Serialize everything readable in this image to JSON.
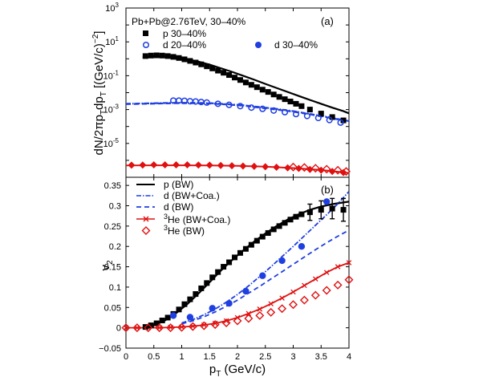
{
  "chart_data": [
    {
      "type": "scatter",
      "panel_label": "(a)",
      "title": "Pb+Pb@2.76TeV, 30–40%",
      "ylabel": "dN/2πp_T dp_T [(GeV/c)^-2]",
      "ylabel_parts": {
        "main": "dN/2πp",
        "sub1": "T",
        "mid": "dp",
        "sub2": "T",
        "bracket": " [(GeV/c)",
        "sup": "−2",
        "close": "]"
      },
      "yscale": "log",
      "xlim": [
        0,
        4
      ],
      "ylim_exp": [
        -7,
        3
      ],
      "ytick_exps": [
        -5,
        -3,
        -1,
        1,
        3
      ],
      "ytick_labels": [
        {
          "base": "10",
          "exp": "-5"
        },
        {
          "base": "10",
          "exp": "-3"
        },
        {
          "base": "10",
          "exp": "-1"
        },
        {
          "base": "10",
          "exp": "1"
        },
        {
          "base": "10",
          "exp": "3"
        }
      ],
      "legend": [
        {
          "marker": "square",
          "color": "#000000",
          "label": "p   30–40%"
        },
        {
          "marker": "open-circle",
          "color": "#1f3fe0",
          "label": "d   20–40%"
        },
        {
          "marker": "filled-circle",
          "color": "#1f3fe0",
          "label": "d   30–40%"
        }
      ],
      "series": [
        {
          "name": "p 30–40% (data)",
          "marker": "square",
          "color": "#000000",
          "x": [
            0.35,
            0.45,
            0.55,
            0.65,
            0.75,
            0.85,
            0.95,
            1.05,
            1.15,
            1.25,
            1.35,
            1.45,
            1.55,
            1.65,
            1.75,
            1.85,
            1.95,
            2.05,
            2.15,
            2.25,
            2.35,
            2.45,
            2.55,
            2.65,
            2.75,
            2.85,
            2.95,
            3.05,
            3.15,
            3.3,
            3.5,
            3.7,
            3.9
          ],
          "y": [
            1.45,
            1.55,
            1.6,
            1.55,
            1.45,
            1.3,
            1.12,
            0.93,
            0.75,
            0.6,
            0.47,
            0.36,
            0.27,
            0.2,
            0.15,
            0.11,
            0.078,
            0.056,
            0.04,
            0.029,
            0.021,
            0.015,
            0.011,
            0.0078,
            0.0056,
            0.0041,
            0.003,
            0.0022,
            0.0016,
            0.001,
            0.00058,
            0.00036,
            0.00023
          ]
        },
        {
          "name": "p (BW) fit",
          "line": "solid",
          "color": "#000000",
          "x": [
            0.3,
            0.5,
            0.7,
            0.9,
            1.1,
            1.3,
            1.5,
            1.7,
            1.9,
            2.1,
            2.3,
            2.5,
            2.7,
            2.9,
            3.1,
            3.3,
            3.5,
            3.7,
            3.9,
            4.0
          ],
          "y": [
            1.2,
            1.45,
            1.4,
            1.2,
            0.95,
            0.68,
            0.45,
            0.28,
            0.17,
            0.1,
            0.058,
            0.033,
            0.019,
            0.011,
            0.0063,
            0.0037,
            0.0022,
            0.0013,
            0.0008,
            0.0006
          ]
        },
        {
          "name": "d 20–40% (data)",
          "marker": "open-circle",
          "color": "#1f3fe0",
          "x": [
            0.85,
            0.95,
            1.05,
            1.15,
            1.25,
            1.35,
            1.45,
            1.65,
            1.85,
            2.05,
            2.25,
            2.45,
            2.65,
            2.85,
            3.05,
            3.25,
            3.45,
            3.65,
            3.85
          ],
          "y": [
            0.0034,
            0.0034,
            0.0033,
            0.0031,
            0.003,
            0.0028,
            0.0026,
            0.0022,
            0.0019,
            0.0016,
            0.0013,
            0.0011,
            0.00088,
            0.0007,
            0.00054,
            0.00042,
            0.00032,
            0.00024,
            0.00017
          ]
        },
        {
          "name": "d (BW+Coa.)",
          "line": "dash-dot",
          "color": "#1f3fe0",
          "x": [
            0,
            0.3,
            0.6,
            0.9,
            1.2,
            1.5,
            1.8,
            2.1,
            2.4,
            2.7,
            3.0,
            3.3,
            3.6,
            3.9,
            4.0
          ],
          "y": [
            0.0022,
            0.0023,
            0.0024,
            0.0025,
            0.0025,
            0.0024,
            0.0021,
            0.0018,
            0.0014,
            0.0011,
            0.0008,
            0.00055,
            0.00037,
            0.00024,
            0.00021
          ]
        },
        {
          "name": "d (BW)",
          "line": "dashed",
          "color": "#1f3fe0",
          "x": [
            0,
            0.3,
            0.6,
            0.9,
            1.2,
            1.5,
            1.8,
            2.1,
            2.4,
            2.7,
            3.0,
            3.3,
            3.6,
            3.9,
            4.0
          ],
          "y": [
            0.0021,
            0.0022,
            0.0023,
            0.0024,
            0.0024,
            0.0023,
            0.002,
            0.0017,
            0.0013,
            0.001,
            0.00075,
            0.00052,
            0.00035,
            0.00023,
            0.0002
          ]
        },
        {
          "name": "3He (data)",
          "marker": "open-diamond",
          "color": "#e01010",
          "x": [
            3.0,
            3.2,
            3.4,
            3.6,
            3.8,
            3.95
          ],
          "y": [
            4e-07,
            3.8e-07,
            3.4e-07,
            3e-07,
            2.6e-07,
            2.2e-07
          ]
        },
        {
          "name": "3He (BW+Coa.) points",
          "marker": "filled-diamond",
          "color": "#e01010",
          "x": [
            0.1,
            0.3,
            0.5,
            0.7,
            0.9,
            1.1,
            1.3,
            1.5,
            1.7,
            1.9,
            2.1,
            2.3,
            2.5,
            2.7,
            2.9,
            3.1,
            3.3,
            3.5,
            3.7,
            3.9
          ],
          "y": [
            5.2e-07,
            5.3e-07,
            5.4e-07,
            5.4e-07,
            5.4e-07,
            5.4e-07,
            5.3e-07,
            5.2e-07,
            5e-07,
            4.8e-07,
            4.6e-07,
            4.4e-07,
            4.2e-07,
            3.9e-07,
            3.6e-07,
            3.3e-07,
            2.9e-07,
            2.6e-07,
            2.2e-07,
            1.9e-07
          ]
        },
        {
          "name": "3He (BW)",
          "line": "solid",
          "color": "#e01010",
          "x": [
            0,
            0.5,
            1.0,
            1.5,
            2.0,
            2.5,
            3.0,
            3.5,
            4.0
          ],
          "y": [
            5e-07,
            5.1e-07,
            5.1e-07,
            5e-07,
            4.7e-07,
            4.2e-07,
            3.5e-07,
            2.7e-07,
            1.8e-07
          ]
        }
      ]
    },
    {
      "type": "line",
      "panel_label": "(b)",
      "xlabel": "p_T (GeV/c)",
      "xlabel_parts": {
        "main": "p",
        "sub": "T",
        "rest": " (GeV/c)"
      },
      "ylabel": "v_2",
      "ylabel_parts": {
        "main": "v",
        "sub": "2"
      },
      "xlim": [
        0,
        4
      ],
      "ylim": [
        -0.05,
        0.37
      ],
      "xticks": [
        0,
        0.5,
        1,
        1.5,
        2,
        2.5,
        3,
        3.5,
        4
      ],
      "xtick_labels": [
        "0",
        "0.5",
        "1",
        "1.5",
        "2",
        "2.5",
        "3",
        "3.5",
        "4"
      ],
      "yticks": [
        -0.05,
        0,
        0.05,
        0.1,
        0.15,
        0.2,
        0.25,
        0.3,
        0.35
      ],
      "ytick_labels": [
        "−0.05",
        "0",
        "0.05",
        "0.1",
        "0.15",
        "0.2",
        "0.25",
        "0.3",
        "0.35"
      ],
      "legend": [
        {
          "style": "solid",
          "color": "#000000",
          "pre": "",
          "sup": "",
          "label": "p (BW)"
        },
        {
          "style": "dash-dot",
          "color": "#1f3fe0",
          "pre": "",
          "sup": "",
          "label": "d (BW+Coa.)"
        },
        {
          "style": "dashed",
          "color": "#1f3fe0",
          "pre": "",
          "sup": "",
          "label": "d (BW)"
        },
        {
          "style": "solid-x",
          "color": "#e01010",
          "pre": "",
          "sup": "3",
          "label": "He (BW+Coa.)"
        },
        {
          "style": "diamond",
          "color": "#e01010",
          "pre": "",
          "sup": "3",
          "label": "He (BW)"
        }
      ],
      "series": [
        {
          "name": "p v2 (data)",
          "marker": "square",
          "color": "#000000",
          "x": [
            0.35,
            0.45,
            0.55,
            0.65,
            0.75,
            0.85,
            0.95,
            1.05,
            1.15,
            1.25,
            1.35,
            1.45,
            1.55,
            1.65,
            1.75,
            1.85,
            1.95,
            2.05,
            2.15,
            2.25,
            2.35,
            2.45,
            2.55,
            2.65,
            2.75,
            2.85,
            2.95,
            3.05,
            3.15,
            3.3,
            3.5,
            3.7,
            3.9
          ],
          "y": [
            0.002,
            0.006,
            0.011,
            0.018,
            0.025,
            0.034,
            0.045,
            0.058,
            0.07,
            0.083,
            0.097,
            0.11,
            0.124,
            0.137,
            0.15,
            0.161,
            0.173,
            0.184,
            0.194,
            0.204,
            0.214,
            0.224,
            0.233,
            0.242,
            0.25,
            0.258,
            0.266,
            0.273,
            0.279,
            0.284,
            0.29,
            0.293,
            0.29
          ],
          "err": [
            0,
            0,
            0,
            0,
            0,
            0,
            0,
            0,
            0,
            0,
            0,
            0,
            0,
            0,
            0,
            0,
            0,
            0,
            0,
            0,
            0,
            0,
            0,
            0,
            0,
            0,
            0,
            0,
            0,
            0.02,
            0.022,
            0.025,
            0.028
          ]
        },
        {
          "name": "p (BW)",
          "line": "solid",
          "color": "#000000",
          "x": [
            0.3,
            0.5,
            0.7,
            0.9,
            1.1,
            1.3,
            1.5,
            1.7,
            1.9,
            2.1,
            2.3,
            2.5,
            2.7,
            2.9,
            3.1,
            3.3,
            3.5,
            3.7,
            3.9,
            4.0
          ],
          "y": [
            0.0,
            0.006,
            0.018,
            0.036,
            0.058,
            0.084,
            0.112,
            0.14,
            0.166,
            0.19,
            0.212,
            0.232,
            0.25,
            0.266,
            0.279,
            0.29,
            0.298,
            0.304,
            0.308,
            0.31
          ]
        },
        {
          "name": "d v2 (data)",
          "marker": "filled-circle",
          "color": "#1f3fe0",
          "x": [
            0.85,
            1.15,
            1.55,
            1.85,
            2.15,
            2.45,
            2.8,
            3.15,
            3.6
          ],
          "y": [
            0.03,
            0.026,
            0.048,
            0.06,
            0.09,
            0.128,
            0.165,
            0.2,
            0.31
          ]
        },
        {
          "name": "d (BW+Coa.)",
          "line": "dash-dot",
          "color": "#1f3fe0",
          "x": [
            1.0,
            1.2,
            1.4,
            1.6,
            1.8,
            2.0,
            2.2,
            2.4,
            2.6,
            2.8,
            3.0,
            3.2,
            3.4,
            3.6,
            3.8,
            4.0
          ],
          "y": [
            0.012,
            0.02,
            0.032,
            0.046,
            0.063,
            0.082,
            0.103,
            0.126,
            0.15,
            0.175,
            0.2,
            0.226,
            0.252,
            0.278,
            0.305,
            0.335
          ]
        },
        {
          "name": "d (BW)",
          "line": "dashed",
          "color": "#1f3fe0",
          "x": [
            1.0,
            1.2,
            1.4,
            1.6,
            1.8,
            2.0,
            2.2,
            2.4,
            2.6,
            2.8,
            3.0,
            3.2,
            3.4,
            3.6,
            3.8,
            4.0
          ],
          "y": [
            0.01,
            0.017,
            0.027,
            0.039,
            0.053,
            0.068,
            0.085,
            0.102,
            0.12,
            0.138,
            0.156,
            0.174,
            0.192,
            0.209,
            0.225,
            0.24
          ]
        },
        {
          "name": "3He (BW+Coa.)",
          "line": "solid-x",
          "color": "#e01010",
          "x": [
            0.0,
            0.2,
            0.4,
            0.6,
            0.8,
            1.0,
            1.2,
            1.4,
            1.6,
            1.8,
            2.0,
            2.2,
            2.4,
            2.6,
            2.8,
            3.0,
            3.2,
            3.4,
            3.6,
            3.8,
            4.0
          ],
          "y": [
            0.0,
            0.0,
            0.0,
            0.0,
            0.001,
            0.002,
            0.004,
            0.007,
            0.011,
            0.017,
            0.025,
            0.035,
            0.046,
            0.059,
            0.073,
            0.088,
            0.104,
            0.12,
            0.136,
            0.15,
            0.16
          ]
        },
        {
          "name": "3He (BW)",
          "marker": "open-diamond",
          "color": "#e01010",
          "x": [
            0.0,
            0.2,
            0.4,
            0.6,
            0.8,
            1.0,
            1.2,
            1.4,
            1.6,
            1.8,
            2.0,
            2.2,
            2.4,
            2.6,
            2.8,
            3.0,
            3.2,
            3.4,
            3.6,
            3.8,
            4.0
          ],
          "y": [
            0.0,
            0.0,
            0.0,
            0.0,
            0.0,
            0.001,
            0.003,
            0.005,
            0.008,
            0.012,
            0.017,
            0.023,
            0.03,
            0.038,
            0.047,
            0.057,
            0.068,
            0.08,
            0.092,
            0.105,
            0.118
          ]
        }
      ]
    }
  ]
}
